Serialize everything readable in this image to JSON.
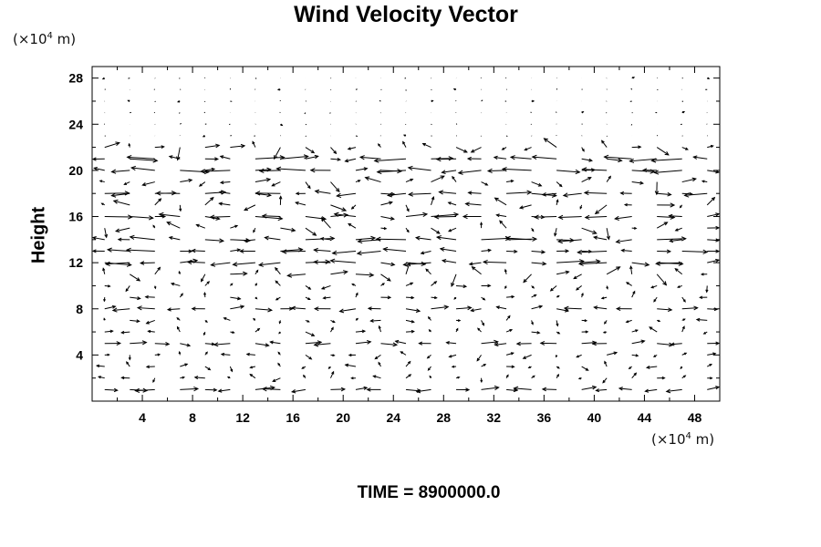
{
  "chart_data": {
    "type": "vector_field",
    "title": "Wind Velocity Vector",
    "ylabel": "Height",
    "xlabel": "",
    "y_unit_note": {
      "prefix": "(×10",
      "exp": "4",
      "suffix": " m)"
    },
    "x_unit_note": {
      "prefix": "(×10",
      "exp": "4",
      "suffix": " m)"
    },
    "xlim": [
      0,
      50
    ],
    "ylim": [
      0,
      29
    ],
    "x_ticks": [
      4,
      8,
      12,
      16,
      20,
      24,
      28,
      32,
      36,
      40,
      44,
      48
    ],
    "y_ticks": [
      4,
      8,
      12,
      16,
      20,
      24,
      28
    ],
    "minor_tick_step": 2,
    "grid": false,
    "grid_x_step": 2,
    "grid_y_step": 1,
    "jet_layers": [
      {
        "height": 21,
        "strength": 1.0
      },
      {
        "height": 20,
        "strength": 0.9
      },
      {
        "height": 18,
        "strength": 0.7
      },
      {
        "height": 16,
        "strength": 0.8
      },
      {
        "height": 14,
        "strength": 0.9
      },
      {
        "height": 13,
        "strength": 1.0
      },
      {
        "height": 12,
        "strength": 0.8
      },
      {
        "height": 8,
        "strength": 0.35
      },
      {
        "height": 5,
        "strength": 0.35
      },
      {
        "height": 1,
        "strength": 0.5
      }
    ],
    "arrow_color": "#000000"
  },
  "footer": {
    "time_text": "TIME = 8900000.0"
  }
}
